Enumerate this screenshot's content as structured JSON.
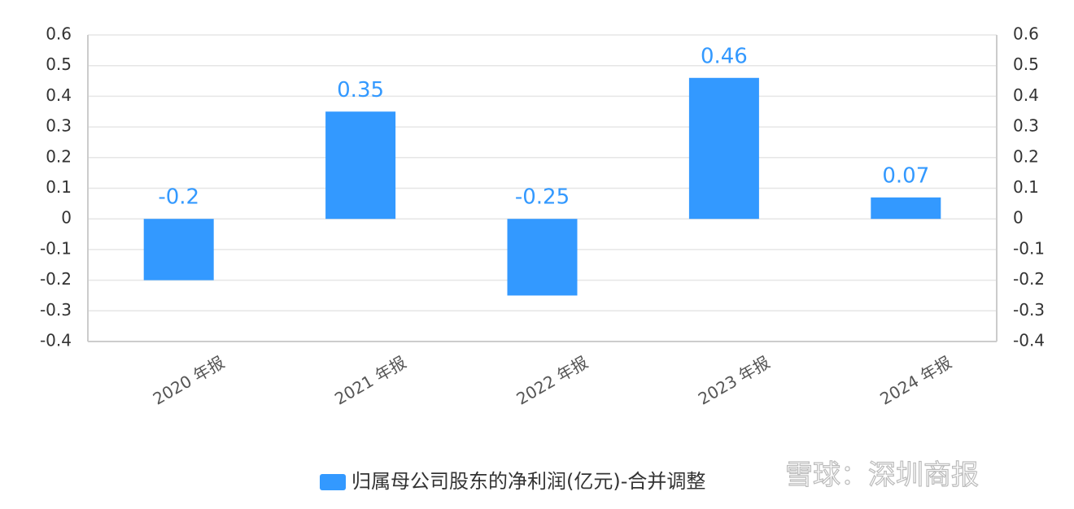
{
  "chart_data": {
    "type": "bar",
    "categories": [
      "2020 年报",
      "2021 年报",
      "2022 年报",
      "2023 年报",
      "2024 年报"
    ],
    "series": [
      {
        "name": "归属母公司股东的净利润(亿元)-合并调整",
        "color": "#3399ff",
        "values": [
          -0.2,
          0.35,
          -0.25,
          0.46,
          0.07
        ]
      }
    ],
    "ylim": [
      -0.4,
      0.6
    ],
    "yticks": [
      -0.4,
      -0.3,
      -0.2,
      -0.1,
      0,
      0.1,
      0.2,
      0.3,
      0.4,
      0.5,
      0.6
    ],
    "y2lim": [
      -0.4,
      0.6
    ],
    "y2ticks": [
      -0.4,
      -0.3,
      -0.2,
      -0.1,
      0,
      0.1,
      0.2,
      0.3,
      0.4,
      0.5,
      0.6
    ],
    "grid": true,
    "legend": "bottom",
    "watermark": "雪球：深圳商报"
  }
}
